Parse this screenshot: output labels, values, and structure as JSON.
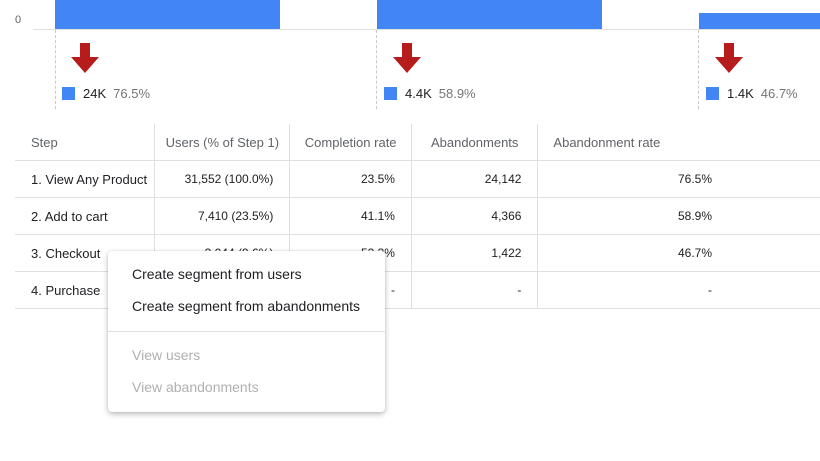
{
  "chart": {
    "axis_zero_label": "0",
    "step_abandonments": [
      {
        "count": "24K",
        "pct": "76.5%"
      },
      {
        "count": "4.4K",
        "pct": "58.9%"
      },
      {
        "count": "1.4K",
        "pct": "46.7%"
      }
    ]
  },
  "table": {
    "headers": {
      "step": "Step",
      "users": "Users (% of Step 1)",
      "completion_rate": "Completion rate",
      "abandonments": "Abandonments",
      "abandonment_rate": "Abandonment rate"
    },
    "rows": [
      {
        "step": "1. View Any Product",
        "users": "31,552 (100.0%)",
        "completion_rate": "23.5%",
        "abandonments": "24,142",
        "abandonment_rate": "76.5%"
      },
      {
        "step": "2. Add to cart",
        "users": "7,410 (23.5%)",
        "completion_rate": "41.1%",
        "abandonments": "4,366",
        "abandonment_rate": "58.9%"
      },
      {
        "step": "3. Checkout",
        "users": "3,044 (9.6%)",
        "completion_rate": "53.3%",
        "abandonments": "1,422",
        "abandonment_rate": "46.7%"
      },
      {
        "step": "4. Purchase",
        "users": "",
        "completion_rate": "-",
        "abandonments": "-",
        "abandonment_rate": "-"
      }
    ]
  },
  "context_menu": {
    "create_segment_users": "Create segment from users",
    "create_segment_abandonments": "Create segment from abandonments",
    "view_users": "View users",
    "view_abandonments": "View abandonments"
  },
  "colors": {
    "bar": "#4285f4",
    "arrow": "#b71c1c"
  }
}
